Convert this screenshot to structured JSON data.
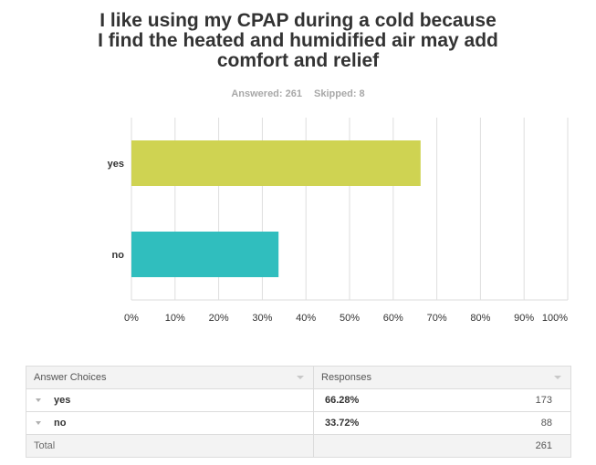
{
  "title_lines": [
    "I like using my CPAP during a cold because",
    "I find the heated and humidified air may add",
    "comfort and relief"
  ],
  "stats": {
    "answered": "Answered: 261",
    "skipped": "Skipped: 8"
  },
  "chart_data": {
    "type": "bar",
    "orientation": "horizontal",
    "categories": [
      "yes",
      "no"
    ],
    "values": [
      66.28,
      33.72
    ],
    "colors": [
      "#cfd352",
      "#30bebe"
    ],
    "xlim": [
      0,
      100
    ],
    "xticks": [
      "0%",
      "10%",
      "20%",
      "30%",
      "40%",
      "50%",
      "60%",
      "70%",
      "80%",
      "90%",
      "100%"
    ],
    "grid": true,
    "legend": "none"
  },
  "table": {
    "headers": [
      "Answer Choices",
      "Responses"
    ],
    "rows": [
      {
        "choice": "yes",
        "percent": "66.28%",
        "count": "173"
      },
      {
        "choice": "no",
        "percent": "33.72%",
        "count": "88"
      }
    ],
    "total_label": "Total",
    "total_count": "261"
  },
  "colors": {
    "grid": "#dedede",
    "header_bg": "#f3f3f3"
  }
}
